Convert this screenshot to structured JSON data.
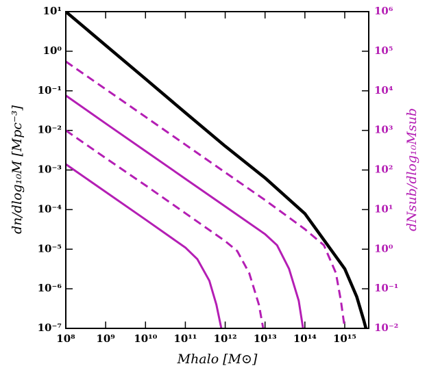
{
  "chart_data": {
    "type": "line",
    "xlabel": "Mhalo [M⊙]",
    "ylabel": "dn/dlog₁₀M [Mpc⁻³]",
    "y2label": "dNsub/dlog₁₀Msub",
    "xscale": "log",
    "yscale": "log",
    "xlim": [
      100000000.0,
      4000000000000000.0
    ],
    "ylim": [
      1e-07,
      10
    ],
    "y2lim": [
      0.01,
      1000000
    ],
    "xticks": [
      {
        "value": 100000000.0,
        "label": "10⁸"
      },
      {
        "value": 1000000000.0,
        "label": "10⁹"
      },
      {
        "value": 10000000000.0,
        "label": "10¹⁰"
      },
      {
        "value": 100000000000.0,
        "label": "10¹¹"
      },
      {
        "value": 1000000000000.0,
        "label": "10¹²"
      },
      {
        "value": 10000000000000.0,
        "label": "10¹³"
      },
      {
        "value": 100000000000000.0,
        "label": "10¹⁴"
      },
      {
        "value": 1000000000000000.0,
        "label": "10¹⁵"
      }
    ],
    "yticks": [
      {
        "value": 1e-07,
        "label": "10⁻⁷"
      },
      {
        "value": 1e-06,
        "label": "10⁻⁶"
      },
      {
        "value": 1e-05,
        "label": "10⁻⁵"
      },
      {
        "value": 0.0001,
        "label": "10⁻⁴"
      },
      {
        "value": 0.001,
        "label": "10⁻³"
      },
      {
        "value": 0.01,
        "label": "10⁻²"
      },
      {
        "value": 0.1,
        "label": "10⁻¹"
      },
      {
        "value": 1,
        "label": "10⁰"
      },
      {
        "value": 10,
        "label": "10¹"
      }
    ],
    "y2ticks": [
      {
        "value": 0.01,
        "label": "10⁻²"
      },
      {
        "value": 0.1,
        "label": "10⁻¹"
      },
      {
        "value": 1,
        "label": "10⁰"
      },
      {
        "value": 10,
        "label": "10¹"
      },
      {
        "value": 100,
        "label": "10²"
      },
      {
        "value": 1000,
        "label": "10³"
      },
      {
        "value": 10000,
        "label": "10⁴"
      },
      {
        "value": 100000,
        "label": "10⁵"
      },
      {
        "value": 1000000,
        "label": "10⁶"
      }
    ],
    "series": [
      {
        "color": "#000000",
        "dashed": false,
        "x": [
          100000000.0,
          1000000000.0,
          10000000000.0,
          100000000000.0,
          1000000000000.0,
          10000000000000.0,
          100000000000000.0,
          1000000000000000.0,
          2000000000000000.0,
          3000000000000000.0,
          3400000000000000.0
        ],
        "values": [
          10,
          1.41,
          0.2,
          0.028,
          0.004,
          0.00063,
          7.9e-05,
          3.2e-06,
          6.3e-07,
          1.6e-07,
          1e-07
        ]
      },
      {
        "color": "#b41eb4",
        "dashed": true,
        "axis": "y2",
        "x": [
          100000000.0,
          1000000000.0,
          10000000000.0,
          100000000000.0,
          1000000000000.0,
          10000000000000.0,
          100000000000000.0,
          300000000000000.0,
          600000000000000.0,
          800000000000000.0,
          1000000000000000.0
        ],
        "values": [
          55000,
          11000,
          2200,
          437,
          87,
          17.4,
          3.2,
          1.26,
          0.25,
          0.05,
          0.01
        ]
      },
      {
        "color": "#b41eb4",
        "dashed": false,
        "axis": "y2",
        "x": [
          100000000.0,
          1000000000.0,
          10000000000.0,
          100000000000.0,
          1000000000000.0,
          10000000000000.0,
          20000000000000.0,
          40000000000000.0,
          70000000000000.0,
          90000000000000.0
        ],
        "values": [
          7600,
          1500,
          300,
          60,
          12,
          2.4,
          1.26,
          0.32,
          0.05,
          0.01
        ]
      },
      {
        "color": "#b41eb4",
        "dashed": true,
        "axis": "y2",
        "x": [
          100000000.0,
          1000000000.0,
          10000000000.0,
          100000000000.0,
          1000000000000.0,
          2000000000000.0,
          4000000000000.0,
          7000000000000.0,
          9000000000000.0
        ],
        "values": [
          1000,
          200,
          41,
          8.1,
          1.6,
          0.9,
          0.25,
          0.04,
          0.01
        ]
      },
      {
        "color": "#b41eb4",
        "dashed": false,
        "axis": "y2",
        "x": [
          100000000.0,
          1000000000.0,
          10000000000.0,
          100000000000.0,
          200000000000.0,
          400000000000.0,
          600000000000.0,
          800000000000.0
        ],
        "values": [
          140,
          28,
          5.6,
          1.1,
          0.56,
          0.16,
          0.04,
          0.01
        ]
      }
    ],
    "y2color": "#b41eb4"
  }
}
